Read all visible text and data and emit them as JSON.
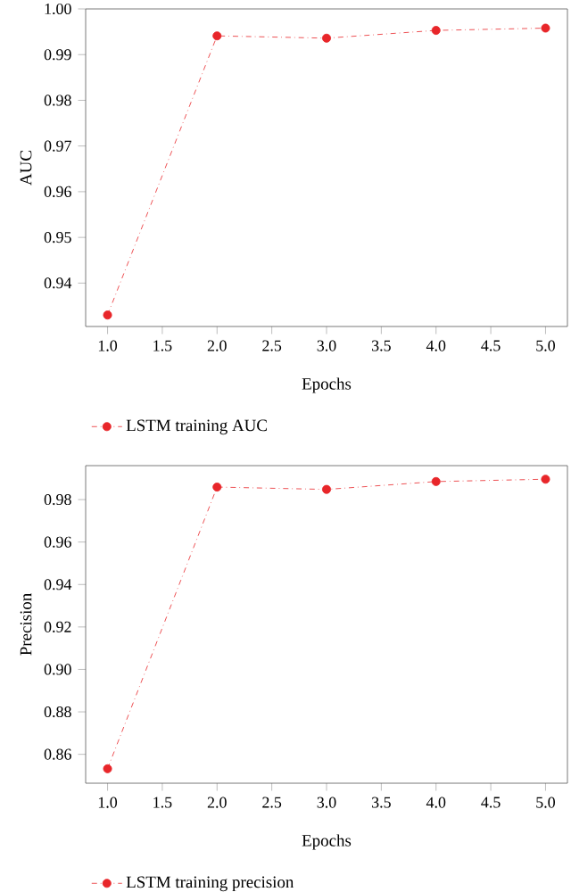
{
  "chart_data": [
    {
      "type": "line",
      "xlabel": "Epochs",
      "ylabel": "AUC",
      "x": [
        1,
        2,
        3,
        4,
        5
      ],
      "series": [
        {
          "name": "LSTM training AUC",
          "color": "#e8262a",
          "values": [
            0.933,
            0.9941,
            0.9936,
            0.9953,
            0.9958
          ]
        }
      ],
      "xlim": [
        0.8,
        5.2
      ],
      "ylim": [
        0.9305,
        1.0
      ],
      "xticks": [
        {
          "value": 1,
          "label": "1.0"
        },
        {
          "value": 1.5,
          "label": "1.5"
        },
        {
          "value": 2,
          "label": "2.0"
        },
        {
          "value": 2.5,
          "label": "2.5"
        },
        {
          "value": 3,
          "label": "3.0"
        },
        {
          "value": 3.5,
          "label": "3.5"
        },
        {
          "value": 4,
          "label": "4.0"
        },
        {
          "value": 4.5,
          "label": "4.5"
        },
        {
          "value": 5,
          "label": "5.0"
        }
      ],
      "yticks": [
        {
          "value": 0.94,
          "label": "0.94"
        },
        {
          "value": 0.95,
          "label": "0.95"
        },
        {
          "value": 0.96,
          "label": "0.96"
        },
        {
          "value": 0.97,
          "label": "0.97"
        },
        {
          "value": 0.98,
          "label": "0.98"
        },
        {
          "value": 0.99,
          "label": "0.99"
        },
        {
          "value": 1.0,
          "label": "1.00"
        }
      ],
      "legend": "bottom",
      "marker": "circle",
      "line_style": "dashed",
      "grid": false
    },
    {
      "type": "line",
      "xlabel": "Epochs",
      "ylabel": "Precision",
      "x": [
        1,
        2,
        3,
        4,
        5
      ],
      "series": [
        {
          "name": "LSTM training precision",
          "color": "#e8262a",
          "values": [
            0.8532,
            0.9859,
            0.9848,
            0.9885,
            0.9896
          ]
        }
      ],
      "xlim": [
        0.8,
        5.2
      ],
      "ylim": [
        0.8464,
        0.996
      ],
      "xticks": [
        {
          "value": 1,
          "label": "1.0"
        },
        {
          "value": 1.5,
          "label": "1.5"
        },
        {
          "value": 2,
          "label": "2.0"
        },
        {
          "value": 2.5,
          "label": "2.5"
        },
        {
          "value": 3,
          "label": "3.0"
        },
        {
          "value": 3.5,
          "label": "3.5"
        },
        {
          "value": 4,
          "label": "4.0"
        },
        {
          "value": 4.5,
          "label": "4.5"
        },
        {
          "value": 5,
          "label": "5.0"
        }
      ],
      "yticks": [
        {
          "value": 0.86,
          "label": "0.86"
        },
        {
          "value": 0.88,
          "label": "0.88"
        },
        {
          "value": 0.9,
          "label": "0.90"
        },
        {
          "value": 0.92,
          "label": "0.92"
        },
        {
          "value": 0.94,
          "label": "0.94"
        },
        {
          "value": 0.96,
          "label": "0.96"
        },
        {
          "value": 0.98,
          "label": "0.98"
        }
      ],
      "legend": "bottom",
      "marker": "circle",
      "line_style": "dashed",
      "grid": false
    }
  ]
}
